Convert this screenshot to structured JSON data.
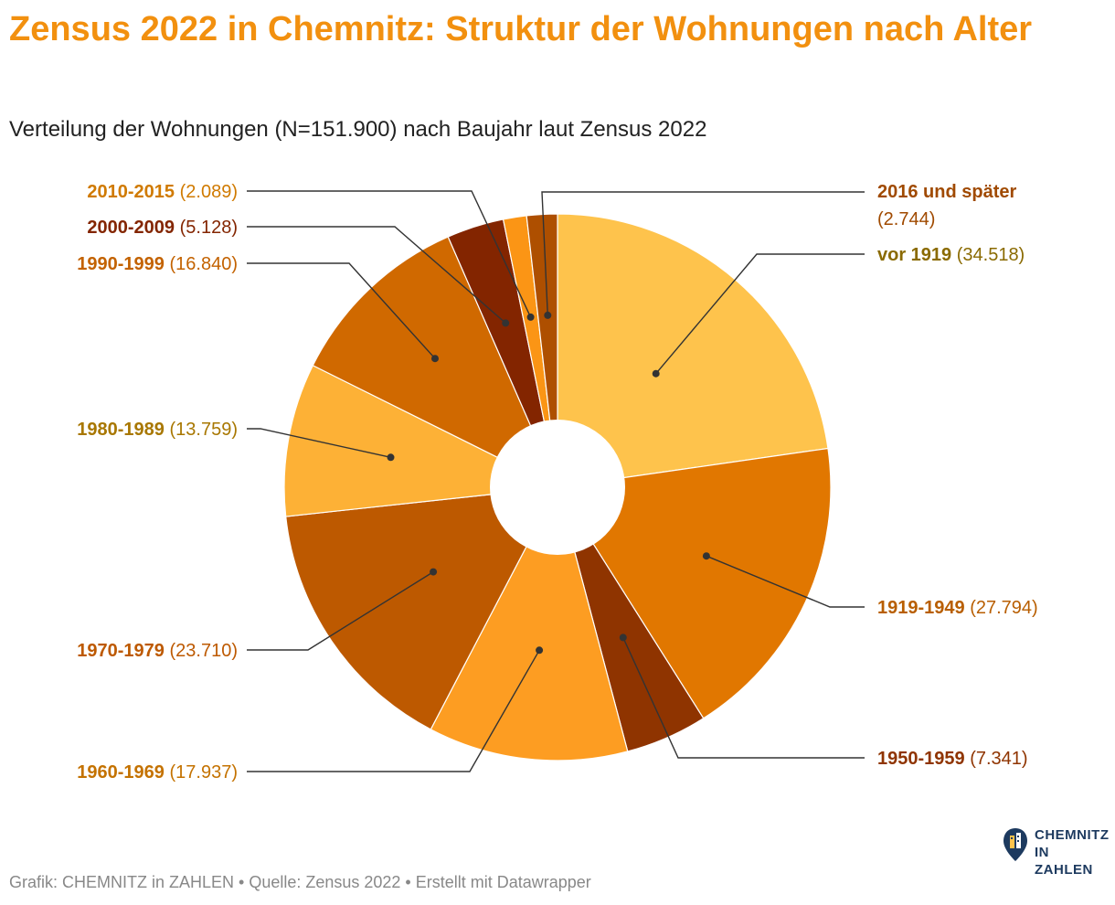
{
  "header": {
    "title": "Zensus 2022 in Chemnitz: Struktur der Wohnungen nach Alter",
    "subtitle": "Verteilung der Wohnungen (N=151.900) nach Baujahr laut Zensus 2022"
  },
  "footer": {
    "text": "Grafik: CHEMNITZ in ZAHLEN • Quelle: Zensus 2022 • Erstellt mit Datawrapper"
  },
  "logo": {
    "line1": "CHEMNITZ",
    "line2": "IN ZAHLEN",
    "icon": "building-pin-icon"
  },
  "chart_data": {
    "type": "pie",
    "variant": "donut",
    "title": "Zensus 2022 in Chemnitz: Struktur der Wohnungen nach Alter",
    "total": 151900,
    "order": "clockwise from top",
    "slices": [
      {
        "label": "vor 1919",
        "value": 34518,
        "value_text": "(34.518)",
        "color": "#fec34c",
        "text_color": "#8a6a00"
      },
      {
        "label": "1919-1949",
        "value": 27794,
        "value_text": "(27.794)",
        "color": "#e17700",
        "text_color": "#b85e00"
      },
      {
        "label": "1950-1959",
        "value": 7341,
        "value_text": "(7.341)",
        "color": "#8f3400",
        "text_color": "#8f3400"
      },
      {
        "label": "1960-1969",
        "value": 17937,
        "value_text": "(17.937)",
        "color": "#fd9d22",
        "text_color": "#c47200"
      },
      {
        "label": "1970-1979",
        "value": 23710,
        "value_text": "(23.710)",
        "color": "#bd5900",
        "text_color": "#bd5900"
      },
      {
        "label": "1980-1989",
        "value": 13759,
        "value_text": "(13.759)",
        "color": "#fdb136",
        "text_color": "#a87700"
      },
      {
        "label": "1990-1999",
        "value": 16840,
        "value_text": "(16.840)",
        "color": "#d06900",
        "text_color": "#c36200"
      },
      {
        "label": "2000-2009",
        "value": 5128,
        "value_text": "(5.128)",
        "color": "#832500",
        "text_color": "#832500"
      },
      {
        "label": "2010-2015",
        "value": 2089,
        "value_text": "(2.089)",
        "color": "#fb9515",
        "text_color": "#d07a00"
      },
      {
        "label": "2016 und später",
        "value": 2744,
        "value_text": "(2.744)",
        "color": "#ae4f00",
        "text_color": "#a04a00"
      }
    ]
  }
}
